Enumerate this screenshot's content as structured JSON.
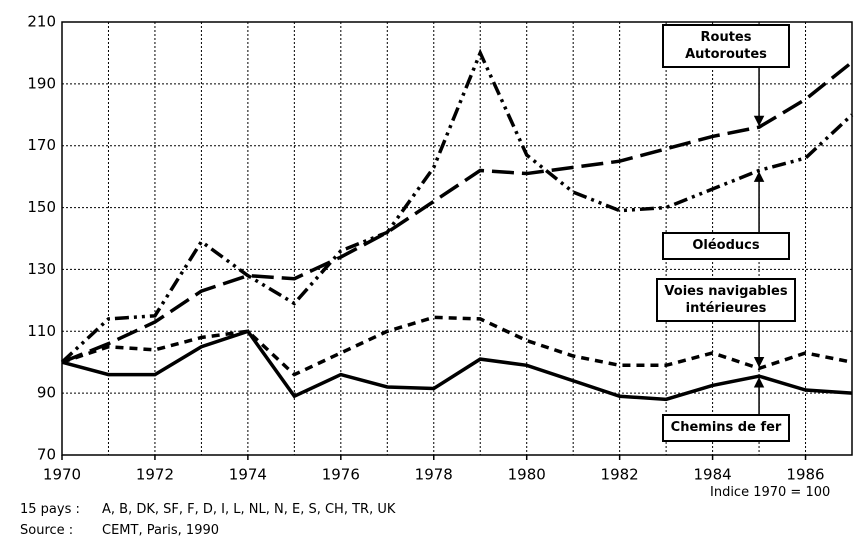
{
  "chart_data": {
    "type": "line",
    "x": [
      1970,
      1971,
      1972,
      1973,
      1974,
      1975,
      1976,
      1977,
      1978,
      1979,
      1980,
      1981,
      1982,
      1983,
      1984,
      1985,
      1986,
      1987
    ],
    "xlim": [
      1970,
      1987
    ],
    "xticks": [
      1970,
      1972,
      1974,
      1976,
      1978,
      1980,
      1982,
      1984,
      1986
    ],
    "ylim": [
      70,
      210
    ],
    "yticks": [
      70,
      90,
      110,
      130,
      150,
      170,
      190,
      210
    ],
    "grid": true,
    "series": [
      {
        "name": "Routes Autoroutes",
        "color": "#000000",
        "dash": "long",
        "values": [
          100,
          106,
          113,
          123,
          128,
          127,
          134,
          142,
          152,
          162,
          161,
          163,
          165,
          169,
          173,
          176,
          185,
          197
        ]
      },
      {
        "name": "Oléoducs",
        "color": "#000000",
        "dash": "dashdotdot",
        "values": [
          100,
          114,
          115,
          139,
          128,
          119,
          136,
          142,
          163,
          200,
          167,
          155,
          149,
          150,
          156,
          162,
          166,
          180
        ]
      },
      {
        "name": "Voies navigables intérieures",
        "color": "#000000",
        "dash": "short",
        "values": [
          100,
          105,
          104,
          108,
          110,
          96,
          103,
          110,
          114.5,
          114,
          107,
          102,
          99,
          99,
          103,
          98,
          103,
          100
        ]
      },
      {
        "name": "Chemins de fer",
        "color": "#000000",
        "dash": "solid",
        "values": [
          100,
          96,
          96,
          105,
          110,
          89,
          96,
          92,
          91.5,
          101,
          99,
          94,
          89,
          88,
          92.5,
          95.5,
          91,
          90
        ]
      }
    ],
    "annotation": "Indice 1970 = 100",
    "countries_label": "15 pays :",
    "countries": "A, B, DK, SF, F, D, I, L, NL, N, E, S, CH, TR, UK",
    "source_label": "Source :",
    "source": "CEMT, Paris, 1990"
  }
}
